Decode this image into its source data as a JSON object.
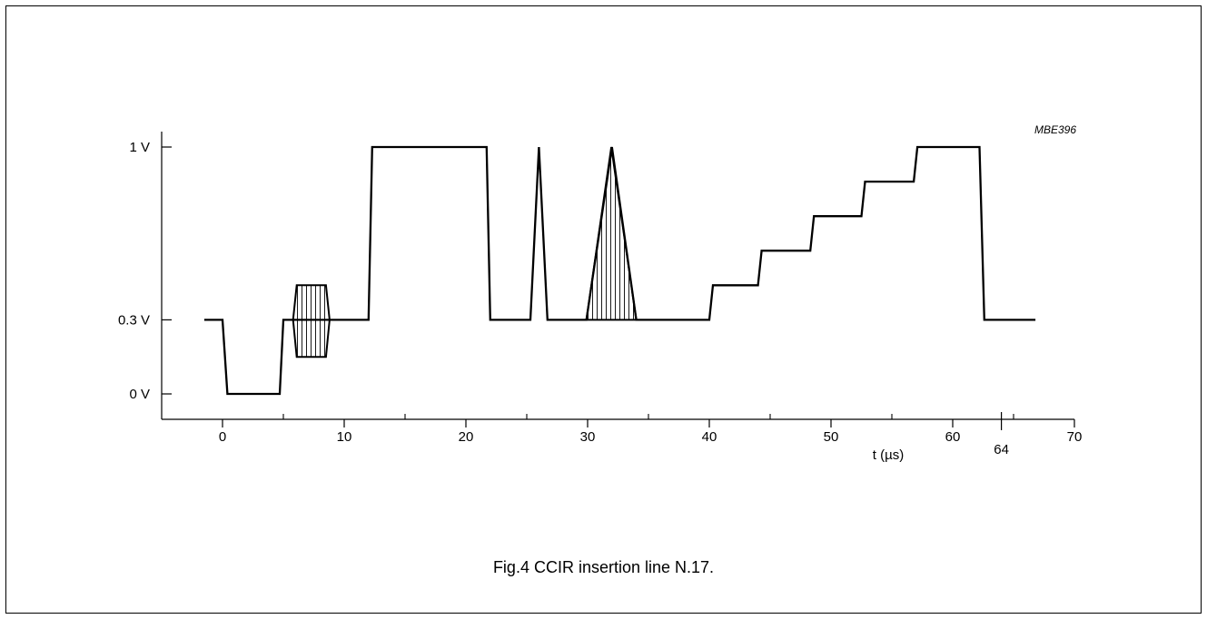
{
  "chart_data": {
    "type": "line",
    "figure_code": "MBE396",
    "caption": "Fig.4  CCIR insertion line N.17.",
    "xlabel": "t (µs)",
    "ylabel": "",
    "xlim": [
      -5,
      70
    ],
    "ylim": [
      0,
      1
    ],
    "x_ticks": [
      0,
      10,
      20,
      30,
      40,
      50,
      60,
      70
    ],
    "x_minor_ticks": [
      5,
      15,
      25,
      35,
      45,
      55,
      65
    ],
    "x_tick_labels": [
      "0",
      "10",
      "20",
      "30",
      "40",
      "50",
      "60",
      "70"
    ],
    "x_special_tick": {
      "value": 64,
      "label": "64"
    },
    "y_ticks": [
      0,
      0.3,
      1
    ],
    "y_tick_labels": [
      "0 V",
      "0.3 V",
      "1 V"
    ],
    "grid": false,
    "series": [
      {
        "x": [
          -1.5,
          0,
          0.4,
          4.7,
          5.0,
          6.0,
          6.2,
          8.3,
          8.6,
          12.0,
          12.3,
          21.7,
          22.0,
          25.3,
          26.0,
          26.7,
          29.9,
          32.0,
          34.0,
          40.0,
          40.3,
          44.0,
          44.3,
          48.3,
          48.6,
          52.5,
          52.8,
          56.8,
          57.1,
          62.2,
          62.6,
          66.8
        ],
        "y": [
          0.3,
          0.3,
          0,
          0,
          0.3,
          0.3,
          0.3,
          0.3,
          0.3,
          0.3,
          1,
          1,
          0.3,
          0.3,
          1,
          0.3,
          0.3,
          1,
          0.3,
          0.3,
          0.44,
          0.44,
          0.58,
          0.58,
          0.72,
          0.72,
          0.86,
          0.86,
          1,
          1,
          0.3,
          0.3
        ]
      }
    ],
    "hatched_regions": [
      {
        "x_start": 5.8,
        "x_end": 8.8,
        "y_min": 0.15,
        "y_max": 0.44,
        "shape": "chrominance-bar"
      },
      {
        "x_start": 29.9,
        "x_end": 34.0,
        "y_min": 0.3,
        "y_max": 1,
        "shape": "pulse-triangle"
      }
    ]
  }
}
